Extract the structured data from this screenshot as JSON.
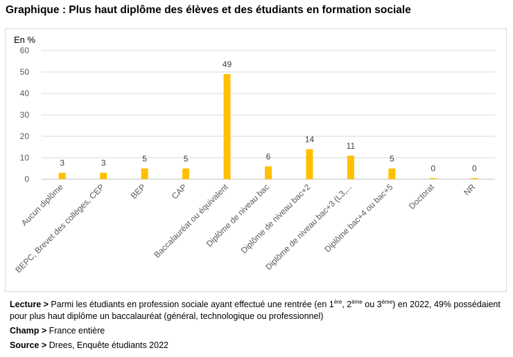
{
  "title": "Graphique : Plus haut diplôme des élèves et des étudiants en formation sociale",
  "chart_data": {
    "type": "bar",
    "unit_label": "En %",
    "ylim": [
      0,
      60
    ],
    "yticks": [
      0,
      10,
      20,
      30,
      40,
      50,
      60
    ],
    "grid": true,
    "legend": "none",
    "bar_color": "#FFC000",
    "categories": [
      "Aucun diplôme",
      "BEPC, Brevet des collèges, CEP",
      "BEP",
      "CAP",
      "Baccalauréat ou équivalent",
      "Diplôme de niveau bac",
      "Diplôme de niveau bac+2",
      "Diplôme de niveau bac+3 (L3,...",
      "Diplôme bac+4 ou bac+5",
      "Doctorat",
      "NR"
    ],
    "values": [
      3,
      3,
      5,
      5,
      49,
      6,
      14,
      11,
      5,
      0,
      0
    ],
    "data_labels": [
      "3",
      "3",
      "5",
      "5",
      "49",
      "6",
      "14",
      "11",
      "5",
      "0",
      "0"
    ]
  },
  "notes": {
    "lecture_label": "Lecture >",
    "lecture_text_a": " Parmi les étudiants en profession sociale ayant effectué une rentrée (en 1",
    "sup_1": "ère",
    "lecture_text_b": ", 2",
    "sup_2": "ème",
    "lecture_text_c": " ou 3",
    "sup_3": "ème",
    "lecture_text_d": ") en 2022, 49% possédaient pour plus haut diplôme un baccalauréat (général, technologique ou professionnel)",
    "champ_label": "Champ >",
    "champ_text": " France entière",
    "source_label": "Source >",
    "source_text": " Drees, Enquête étudiants 2022"
  }
}
